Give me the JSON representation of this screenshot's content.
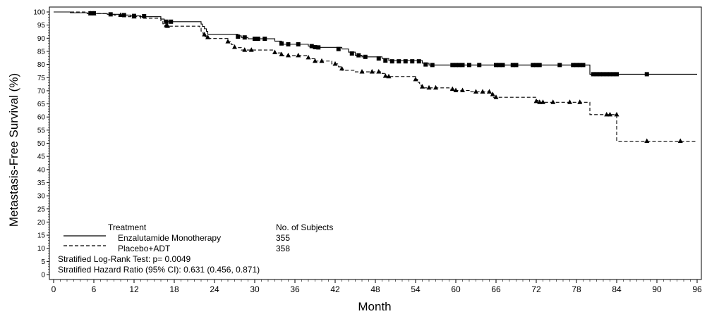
{
  "chart_data": {
    "type": "line",
    "title": "",
    "xlabel": "Month",
    "ylabel": "Metastasis-Free Survival (%)",
    "xlim": [
      0,
      96
    ],
    "ylim": [
      0,
      100
    ],
    "x_ticks": [
      0,
      6,
      12,
      18,
      24,
      30,
      36,
      42,
      48,
      54,
      60,
      66,
      72,
      78,
      84,
      90,
      96
    ],
    "y_ticks": [
      0,
      5,
      10,
      15,
      20,
      25,
      30,
      35,
      40,
      45,
      50,
      55,
      60,
      65,
      70,
      75,
      80,
      85,
      90,
      95,
      100
    ],
    "grid": false,
    "legend": {
      "title": "Treatment",
      "count_header": "No. of Subjects",
      "placement": "bottom-left"
    },
    "series": [
      {
        "name": "Enzalutamide Monotherapy",
        "subjects": "355",
        "line_style": "solid",
        "censor_marker": "square",
        "steps": [
          [
            0,
            100
          ],
          [
            2.5,
            99.7
          ],
          [
            5,
            99.4
          ],
          [
            8,
            99.1
          ],
          [
            10,
            98.8
          ],
          [
            11.5,
            98.5
          ],
          [
            13,
            98.2
          ],
          [
            16,
            97.3
          ],
          [
            16.5,
            96.3
          ],
          [
            22,
            95.4
          ],
          [
            22.2,
            94.5
          ],
          [
            22.5,
            93.6
          ],
          [
            22.8,
            92.6
          ],
          [
            23,
            91.5
          ],
          [
            27.5,
            90.9
          ],
          [
            28,
            90.3
          ],
          [
            29,
            89.8
          ],
          [
            33,
            88.9
          ],
          [
            34,
            87.7
          ],
          [
            38,
            87.0
          ],
          [
            39,
            86.5
          ],
          [
            43,
            85.9
          ],
          [
            44,
            84.7
          ],
          [
            45,
            83.5
          ],
          [
            46,
            82.9
          ],
          [
            49,
            82.3
          ],
          [
            50,
            81.5
          ],
          [
            55,
            80.5
          ],
          [
            56,
            79.8
          ],
          [
            80,
            76.3
          ]
        ],
        "censored": [
          [
            5.5,
            99.5
          ],
          [
            6,
            99.5
          ],
          [
            8.5,
            99.1
          ],
          [
            10.5,
            98.8
          ],
          [
            12,
            98.5
          ],
          [
            13.5,
            98.4
          ],
          [
            16.8,
            96.3
          ],
          [
            17.5,
            96.3
          ],
          [
            27.5,
            90.6
          ],
          [
            28.5,
            90.3
          ],
          [
            30,
            89.8
          ],
          [
            30.5,
            89.8
          ],
          [
            31.5,
            89.8
          ],
          [
            34,
            88.0
          ],
          [
            35,
            87.7
          ],
          [
            36.5,
            87.7
          ],
          [
            38.5,
            87.0
          ],
          [
            39,
            86.6
          ],
          [
            39.5,
            86.5
          ],
          [
            42.5,
            85.9
          ],
          [
            44.5,
            84.2
          ],
          [
            45.5,
            83.5
          ],
          [
            46.5,
            82.9
          ],
          [
            48.5,
            82.3
          ],
          [
            49.5,
            81.5
          ],
          [
            50.5,
            81.2
          ],
          [
            51.5,
            81.2
          ],
          [
            52.5,
            81.2
          ],
          [
            53.5,
            81.2
          ],
          [
            54.5,
            81.2
          ],
          [
            55.5,
            80.0
          ],
          [
            56.5,
            79.8
          ],
          [
            59.5,
            79.8
          ],
          [
            60,
            79.8
          ],
          [
            60.5,
            79.8
          ],
          [
            61,
            79.8
          ],
          [
            62,
            79.8
          ],
          [
            63.5,
            79.8
          ],
          [
            66,
            79.8
          ],
          [
            66.5,
            79.8
          ],
          [
            67,
            79.8
          ],
          [
            68.5,
            79.8
          ],
          [
            69,
            79.8
          ],
          [
            71.5,
            79.8
          ],
          [
            72,
            79.8
          ],
          [
            72.5,
            79.8
          ],
          [
            75.5,
            79.8
          ],
          [
            77.5,
            79.8
          ],
          [
            78,
            79.8
          ],
          [
            78.5,
            79.8
          ],
          [
            79,
            79.8
          ],
          [
            80.5,
            76.3
          ],
          [
            81,
            76.3
          ],
          [
            81.5,
            76.3
          ],
          [
            82,
            76.3
          ],
          [
            82.5,
            76.3
          ],
          [
            83,
            76.3
          ],
          [
            83.5,
            76.3
          ],
          [
            84,
            76.3
          ],
          [
            88.5,
            76.3
          ]
        ]
      },
      {
        "name": "Placebo+ADT",
        "subjects": "358",
        "line_style": "dashed",
        "censor_marker": "triangle",
        "steps": [
          [
            0,
            100
          ],
          [
            5,
            99.4
          ],
          [
            9,
            98.8
          ],
          [
            11,
            98.2
          ],
          [
            13,
            97.6
          ],
          [
            16,
            96.5
          ],
          [
            16.3,
            95.5
          ],
          [
            16.6,
            94.6
          ],
          [
            21.8,
            93.8
          ],
          [
            22,
            92.7
          ],
          [
            22.3,
            91.6
          ],
          [
            22.6,
            90.5
          ],
          [
            23,
            89.9
          ],
          [
            26,
            88.7
          ],
          [
            26.5,
            87.6
          ],
          [
            27,
            86.4
          ],
          [
            28,
            85.5
          ],
          [
            33,
            84.4
          ],
          [
            34,
            83.4
          ],
          [
            38,
            82.2
          ],
          [
            39,
            81.3
          ],
          [
            41.5,
            80.2
          ],
          [
            42.5,
            79.1
          ],
          [
            43,
            77.8
          ],
          [
            45,
            77.2
          ],
          [
            49,
            76.6
          ],
          [
            49.5,
            75.4
          ],
          [
            54,
            74.3
          ],
          [
            54.3,
            73.2
          ],
          [
            54.6,
            72.1
          ],
          [
            55,
            71.1
          ],
          [
            59,
            70.6
          ],
          [
            60,
            70.1
          ],
          [
            62,
            69.6
          ],
          [
            65,
            68.8
          ],
          [
            65.5,
            67.5
          ],
          [
            72,
            66.3
          ],
          [
            72.5,
            65.6
          ],
          [
            80,
            60.9
          ],
          [
            84,
            50.8
          ]
        ],
        "censored": [
          [
            5.5,
            99.4
          ],
          [
            6,
            99.4
          ],
          [
            10,
            98.8
          ],
          [
            12,
            98.2
          ],
          [
            16.8,
            94.8
          ],
          [
            17,
            94.6
          ],
          [
            22.5,
            91.4
          ],
          [
            23,
            90.3
          ],
          [
            26,
            88.7
          ],
          [
            27,
            86.6
          ],
          [
            28.5,
            85.5
          ],
          [
            29.5,
            85.5
          ],
          [
            33,
            84.6
          ],
          [
            34,
            83.8
          ],
          [
            35,
            83.4
          ],
          [
            36.5,
            83.4
          ],
          [
            38,
            82.6
          ],
          [
            39,
            81.3
          ],
          [
            40,
            81.3
          ],
          [
            42,
            80.2
          ],
          [
            43,
            78.4
          ],
          [
            46,
            77.2
          ],
          [
            47.5,
            77.2
          ],
          [
            48.5,
            77.2
          ],
          [
            49.5,
            75.6
          ],
          [
            50,
            75.4
          ],
          [
            54,
            74.3
          ],
          [
            55,
            71.5
          ],
          [
            56,
            71.1
          ],
          [
            57,
            71.1
          ],
          [
            59.5,
            70.6
          ],
          [
            60,
            70.1
          ],
          [
            61,
            70.1
          ],
          [
            63,
            69.6
          ],
          [
            64,
            69.6
          ],
          [
            65,
            69.6
          ],
          [
            65.5,
            68.6
          ],
          [
            66,
            67.5
          ],
          [
            72,
            66.0
          ],
          [
            72.5,
            65.6
          ],
          [
            73,
            65.6
          ],
          [
            74.5,
            65.6
          ],
          [
            77,
            65.6
          ],
          [
            78.5,
            65.6
          ],
          [
            82.5,
            60.9
          ],
          [
            83,
            60.9
          ],
          [
            84,
            60.9
          ],
          [
            88.5,
            50.8
          ],
          [
            93.5,
            50.8
          ]
        ]
      }
    ],
    "annotations": [
      "Stratified Log-Rank Test: p= 0.0049",
      "Stratified Hazard Ratio (95% CI): 0.631 (0.456, 0.871)"
    ]
  }
}
